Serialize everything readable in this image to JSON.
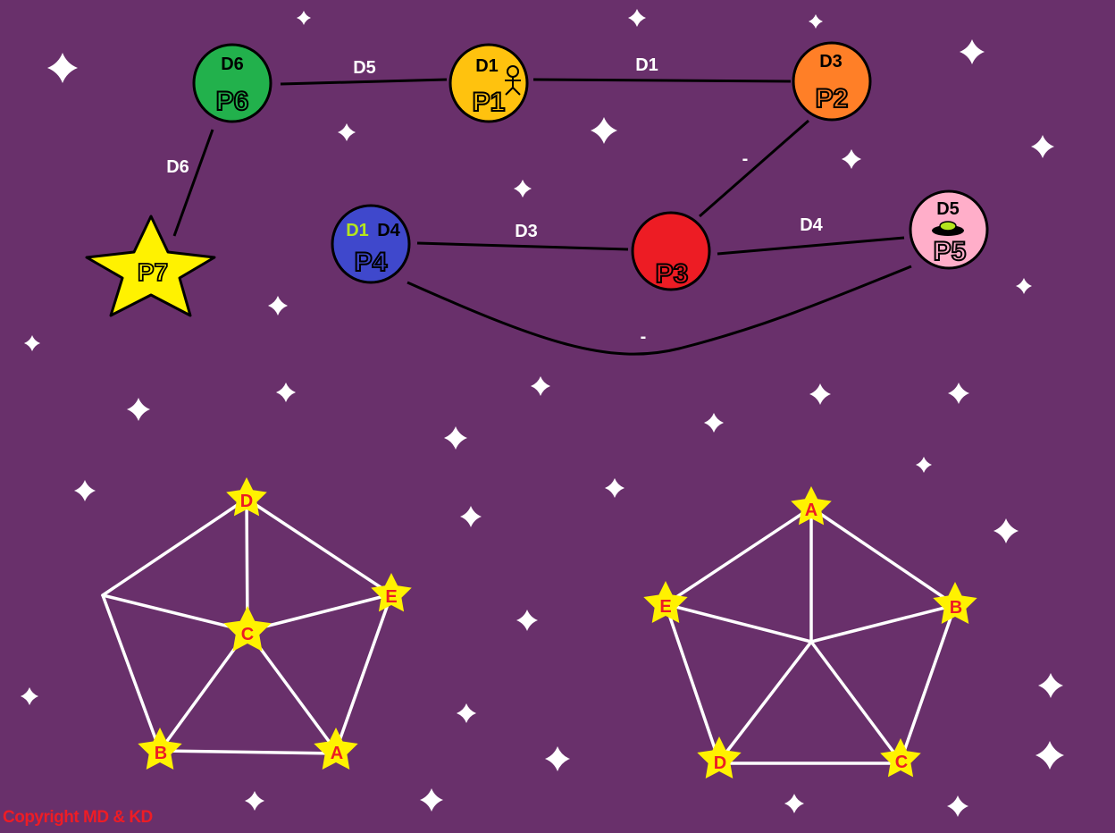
{
  "map": {
    "planets": [
      {
        "id": "P1",
        "name": "P1",
        "days": [
          "D1"
        ],
        "color": "#ffc20e",
        "marker": "person-icon"
      },
      {
        "id": "P2",
        "name": "P2",
        "days": [
          "D3"
        ],
        "color": "#ff7f27"
      },
      {
        "id": "P3",
        "name": "P3",
        "days": [],
        "color": "#ed1c24"
      },
      {
        "id": "P4",
        "name": "P4",
        "days": [
          "D1",
          "D4"
        ],
        "day_colors": [
          "#b5e61d",
          "#000000"
        ],
        "color": "#3f48cc"
      },
      {
        "id": "P5",
        "name": "P5",
        "days": [
          "D5"
        ],
        "color": "#ffaec9",
        "marker": "ufo-icon"
      },
      {
        "id": "P6",
        "name": "P6",
        "days": [
          "D6"
        ],
        "color": "#22b14c"
      },
      {
        "id": "P7",
        "name": "P7",
        "days": [],
        "color": "#fff200",
        "shape": "star"
      }
    ],
    "routes": [
      {
        "from": "P6",
        "to": "P1",
        "label": "D5"
      },
      {
        "from": "P1",
        "to": "P2",
        "label": "D1"
      },
      {
        "from": "P2",
        "to": "P3",
        "label": "-"
      },
      {
        "from": "P4",
        "to": "P3",
        "label": "D3"
      },
      {
        "from": "P3",
        "to": "P5",
        "label": "D4"
      },
      {
        "from": "P6",
        "to": "P7",
        "label": "D6"
      },
      {
        "from": "P4",
        "to": "P5",
        "label": "-"
      }
    ]
  },
  "graph_left": {
    "stars": [
      "D",
      "E",
      "C",
      "B",
      "A"
    ],
    "star_color": "#fff200",
    "label_color": "#ed1c24",
    "edge_color": "#ffffff"
  },
  "graph_right": {
    "stars": [
      "A",
      "E",
      "B",
      "D",
      "C"
    ],
    "star_color": "#fff200",
    "label_color": "#ed1c24",
    "edge_color": "#ffffff"
  },
  "colors": {
    "background": "#69306b",
    "route": "#000000",
    "route_label": "#ffffff",
    "sparkle": "#ffffff"
  },
  "footer": {
    "copyright": "Copyright MD & KD"
  }
}
